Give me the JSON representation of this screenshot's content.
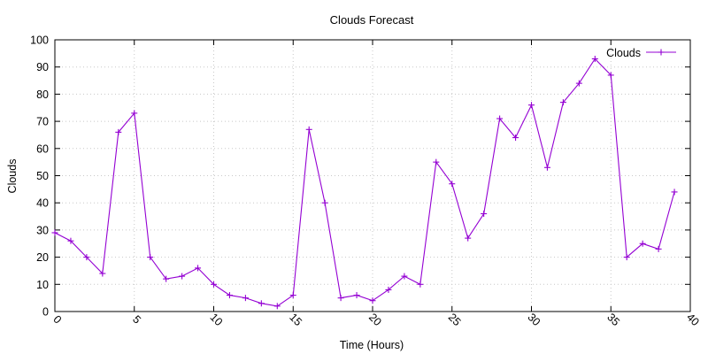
{
  "chart_data": {
    "type": "line",
    "title": "Clouds Forecast",
    "xlabel": "Time (Hours)",
    "ylabel": "Clouds",
    "xlim": [
      0,
      40
    ],
    "ylim": [
      0,
      100
    ],
    "xticks": [
      0,
      5,
      10,
      15,
      20,
      25,
      30,
      35,
      40
    ],
    "yticks": [
      0,
      10,
      20,
      30,
      40,
      50,
      60,
      70,
      80,
      90,
      100
    ],
    "grid": true,
    "legend_position": "top-right",
    "series": [
      {
        "name": "Clouds",
        "color": "#9400d3",
        "marker": "plus",
        "x": [
          0,
          1,
          2,
          3,
          4,
          5,
          6,
          7,
          8,
          9,
          10,
          11,
          12,
          13,
          14,
          15,
          16,
          17,
          18,
          19,
          20,
          21,
          22,
          23,
          24,
          25,
          26,
          27,
          28,
          29,
          30,
          31,
          32,
          33,
          34,
          35,
          36,
          37,
          38,
          39
        ],
        "values": [
          29,
          26,
          20,
          14,
          66,
          73,
          20,
          12,
          13,
          16,
          10,
          6,
          5,
          3,
          2,
          6,
          67,
          40,
          5,
          6,
          4,
          8,
          13,
          10,
          55,
          47,
          27,
          36,
          71,
          64,
          76,
          53,
          77,
          84,
          93,
          87,
          20,
          25,
          23,
          44
        ]
      }
    ]
  }
}
